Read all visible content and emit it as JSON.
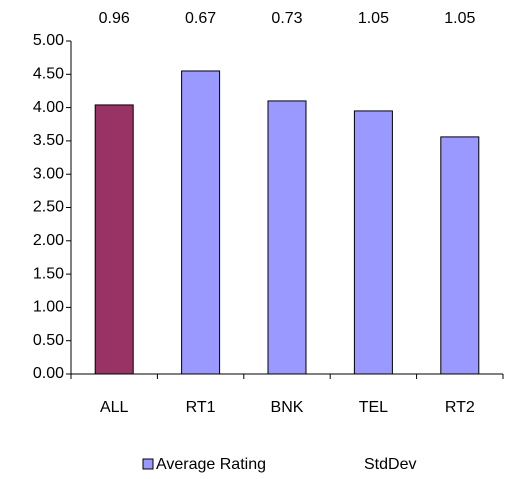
{
  "chart_data": {
    "type": "bar",
    "categories": [
      "ALL",
      "RT1",
      "BNK",
      "TEL",
      "RT2"
    ],
    "series": [
      {
        "name": "Average Rating",
        "color": "#9999ff",
        "colors": [
          "#993366",
          "#9999ff",
          "#9999ff",
          "#9999ff",
          "#9999ff"
        ],
        "values": [
          4.04,
          4.55,
          4.1,
          3.95,
          3.56
        ]
      },
      {
        "name": "StdDev",
        "values": [
          0.96,
          0.67,
          0.73,
          1.05,
          1.05
        ]
      }
    ],
    "ylim": [
      0,
      5
    ],
    "yticks": [
      {
        "value": 0,
        "label": "0.00"
      },
      {
        "value": 0.5,
        "label": "0.50"
      },
      {
        "value": 1,
        "label": "1.00"
      },
      {
        "value": 1.5,
        "label": "1.50"
      },
      {
        "value": 2,
        "label": "2.00"
      },
      {
        "value": 2.5,
        "label": "2.50"
      },
      {
        "value": 3,
        "label": "3.00"
      },
      {
        "value": 3.5,
        "label": "3.50"
      },
      {
        "value": 4,
        "label": "4.00"
      },
      {
        "value": 4.5,
        "label": "4.50"
      },
      {
        "value": 5,
        "label": "5.00"
      }
    ],
    "legend": "bottom"
  }
}
